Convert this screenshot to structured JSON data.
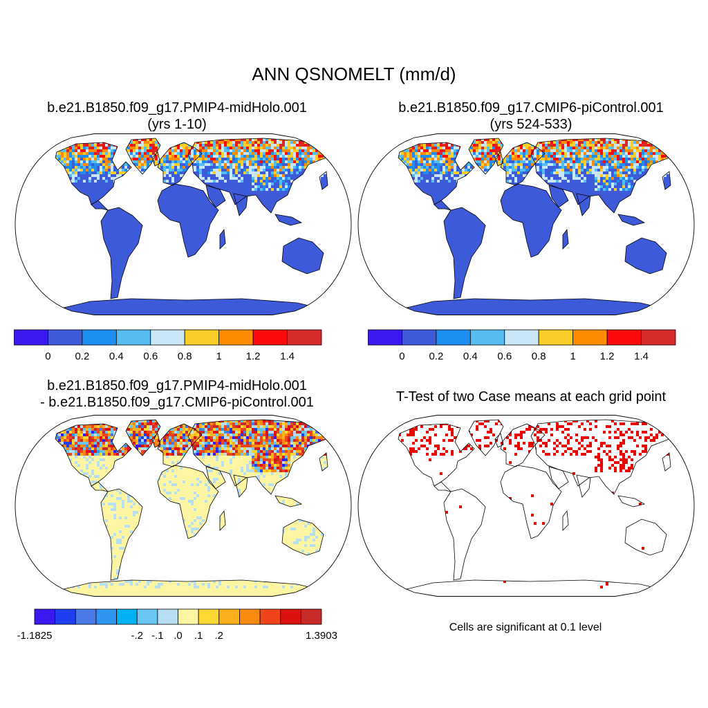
{
  "title": "ANN QSNOMELT (mm/d)",
  "panels": {
    "p1": {
      "title_line1": "b.e21.B1850.f09_g17.PMIP4-midHolo.001",
      "title_line2": "(yrs 1-10)"
    },
    "p2": {
      "title_line1": "b.e21.B1850.f09_g17.CMIP6-piControl.001",
      "title_line2": "(yrs 524-533)"
    },
    "p3": {
      "title_line1": "b.e21.B1850.f09_g17.PMIP4-midHolo.001",
      "title_line2": "- b.e21.B1850.f09_g17.CMIP6-piControl.001"
    },
    "p4": {
      "title_line1": "T-Test of two Case means at each grid point",
      "note": "Cells are significant at 0.1 level"
    }
  },
  "colorbar_case": {
    "colors": [
      "#3a18f0",
      "#3d5ad8",
      "#1e8ef0",
      "#55bdf0",
      "#c8e6f5",
      "#fdcd2a",
      "#ff8c00",
      "#ff0a0a",
      "#d42a2a"
    ],
    "labels": [
      "0",
      "0.2",
      "0.4",
      "0.6",
      "0.8",
      "1",
      "1.2",
      "1.4"
    ]
  },
  "colorbar_diff": {
    "colors": [
      "#3a18f0",
      "#1e3ef0",
      "#4a78e6",
      "#2e96f0",
      "#00b2f2",
      "#69c5f2",
      "#b6def2",
      "#fff6a4",
      "#fdd835",
      "#fbb01e",
      "#f98a10",
      "#f0441a",
      "#dd1010",
      "#c82a2a"
    ],
    "labels": [
      "-1.1825",
      "-.2",
      "-.1",
      ".0",
      ".1",
      ".2",
      "1.3903"
    ]
  },
  "colors": {
    "ocean": "#ffffff",
    "land_low": "#3d5ad8",
    "diff_land": "#fff6a4",
    "ttest_sig": "#ee0000",
    "coast": "#000000"
  }
}
